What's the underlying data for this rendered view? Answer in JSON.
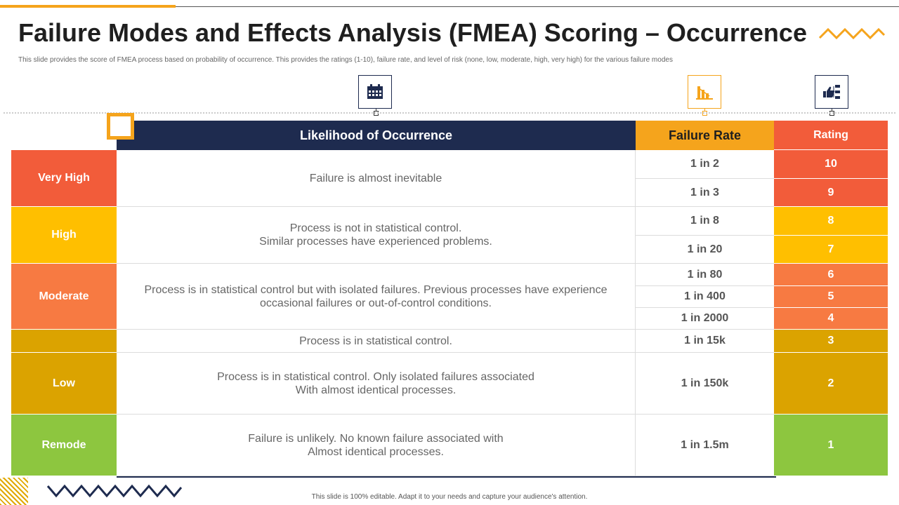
{
  "title": "Failure Modes and Effects Analysis (FMEA) Scoring – Occurrence",
  "subtitle": "This slide provides the score of FMEA process based on probability of occurrence. This provides the ratings (1-10), failure rate, and level of risk (none, low, moderate, high,  very high) for the various failure modes",
  "icons": {
    "likelihood": "calendar-icon",
    "failure_rate": "declining-bar-chart-icon",
    "rating": "thumbs-up-hierarchy-icon"
  },
  "colors": {
    "navy": "#1e2b4f",
    "orange": "#f5a41c",
    "very_high": "#f25c3a",
    "high": "#ffbf00",
    "moderate": "#f77a42",
    "low": "#dba300",
    "remode": "#8dc63f"
  },
  "table": {
    "headers": {
      "likelihood": "Likelihood of Occurrence",
      "failure_rate": "Failure Rate",
      "rating": "Rating"
    },
    "levels": [
      {
        "label": "Very High",
        "color": "#f25c3a"
      },
      {
        "label": "High",
        "color": "#ffbf00"
      },
      {
        "label": "Moderate",
        "color": "#f77a42"
      },
      {
        "label": "",
        "color": "#dba300"
      },
      {
        "label": "Low",
        "color": "#dba300"
      },
      {
        "label": "Remode",
        "color": "#8dc63f"
      }
    ],
    "descriptions": [
      "Failure is almost inevitable",
      "Process is not in statistical control.\nSimilar processes have experienced problems.",
      "Process is in statistical control but with isolated failures. Previous processes have experience occasional failures or out-of-control  conditions.",
      "Process is in statistical control.",
      "Process is in statistical control.  Only isolated failures associated\nWith almost identical processes.",
      "Failure is unlikely.  No known failure associated with\nAlmost identical processes."
    ],
    "rows": [
      {
        "rate": "1 in 2",
        "rating": "10",
        "color": "#f25c3a"
      },
      {
        "rate": "1 in 3",
        "rating": "9",
        "color": "#f25c3a"
      },
      {
        "rate": "1 in 8",
        "rating": "8",
        "color": "#ffbf00"
      },
      {
        "rate": "1 in 20",
        "rating": "7",
        "color": "#ffbf00"
      },
      {
        "rate": "1 in 80",
        "rating": "6",
        "color": "#f77a42"
      },
      {
        "rate": "1 in 400",
        "rating": "5",
        "color": "#f77a42"
      },
      {
        "rate": "1 in 2000",
        "rating": "4",
        "color": "#f77a42"
      },
      {
        "rate": "1 in 15k",
        "rating": "3",
        "color": "#dba300"
      },
      {
        "rate": "1 in 150k",
        "rating": "2",
        "color": "#dba300"
      },
      {
        "rate": "1 in 1.5m",
        "rating": "1",
        "color": "#8dc63f"
      }
    ]
  },
  "footer": "This slide is 100% editable.  Adapt it to your needs and capture your audience's attention."
}
